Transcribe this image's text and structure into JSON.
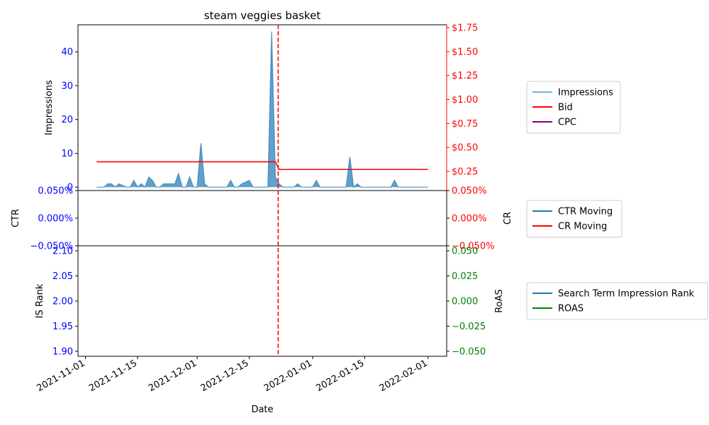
{
  "chart_data": [
    {
      "type": "area",
      "title": "steam veggies basket",
      "ylabel_left": "Impressions",
      "ylabel_right": "",
      "left_ylim": [
        -1,
        48
      ],
      "left_ticks": [
        0,
        10,
        20,
        30,
        40
      ],
      "left_tick_labels": [
        "0",
        "10",
        "20",
        "30",
        "40"
      ],
      "right_ylim": [
        0.05,
        1.78
      ],
      "right_ticks": [
        0.25,
        0.5,
        0.75,
        1.0,
        1.25,
        1.5,
        1.75
      ],
      "right_tick_labels": [
        "$0.25",
        "$0.50",
        "$0.75",
        "$1.00",
        "$1.25",
        "$1.50",
        "$1.75"
      ],
      "vline_date": "2021-12-22",
      "x_dates": [
        "2021-11-04",
        "2021-11-05",
        "2021-11-06",
        "2021-11-07",
        "2021-11-08",
        "2021-11-09",
        "2021-11-10",
        "2021-11-11",
        "2021-11-12",
        "2021-11-13",
        "2021-11-14",
        "2021-11-15",
        "2021-11-16",
        "2021-11-17",
        "2021-11-18",
        "2021-11-19",
        "2021-11-20",
        "2021-11-21",
        "2021-11-22",
        "2021-11-23",
        "2021-11-24",
        "2021-11-25",
        "2021-11-26",
        "2021-11-27",
        "2021-11-28",
        "2021-11-29",
        "2021-11-30",
        "2021-12-01",
        "2021-12-02",
        "2021-12-03",
        "2021-12-04",
        "2021-12-05",
        "2021-12-06",
        "2021-12-07",
        "2021-12-08",
        "2021-12-09",
        "2021-12-10",
        "2021-12-11",
        "2021-12-12",
        "2021-12-13",
        "2021-12-14",
        "2021-12-15",
        "2021-12-16",
        "2021-12-17",
        "2021-12-18",
        "2021-12-19",
        "2021-12-20",
        "2021-12-21",
        "2021-12-22",
        "2021-12-23",
        "2021-12-24",
        "2021-12-25",
        "2021-12-26",
        "2021-12-27",
        "2021-12-28",
        "2021-12-29",
        "2021-12-30",
        "2021-12-31",
        "2022-01-01",
        "2022-01-02",
        "2022-01-03",
        "2022-01-04",
        "2022-01-05",
        "2022-01-06",
        "2022-01-07",
        "2022-01-08",
        "2022-01-09",
        "2022-01-10",
        "2022-01-11",
        "2022-01-12",
        "2022-01-13",
        "2022-01-14",
        "2022-01-15",
        "2022-01-16",
        "2022-01-17",
        "2022-01-18",
        "2022-01-19",
        "2022-01-20",
        "2022-01-21",
        "2022-01-22",
        "2022-01-23",
        "2022-01-24",
        "2022-01-25",
        "2022-01-26",
        "2022-01-27",
        "2022-01-28",
        "2022-01-29",
        "2022-01-30",
        "2022-01-31",
        "2022-02-01"
      ],
      "series": [
        {
          "name": "Impressions",
          "color": "#1f77b4",
          "axis": "left",
          "values": [
            0,
            0,
            0,
            1,
            1,
            0,
            1,
            0.5,
            0,
            0,
            2,
            0,
            1,
            0,
            3,
            2,
            0,
            0,
            1,
            1,
            1,
            1,
            4,
            0,
            0,
            3,
            0,
            0,
            13,
            1,
            0,
            0,
            0,
            0,
            0,
            0,
            2,
            0,
            0,
            1,
            1.5,
            2,
            0,
            0,
            0,
            0,
            0,
            46,
            3,
            1,
            0,
            0,
            0,
            0,
            1,
            0,
            0,
            0,
            0,
            2,
            0,
            0,
            0,
            0,
            0,
            0,
            0,
            0,
            9,
            0,
            1,
            0,
            0,
            0,
            0,
            0,
            0,
            0,
            0,
            0,
            2,
            0,
            0,
            0,
            0,
            0,
            0,
            0,
            0,
            0
          ]
        },
        {
          "name": "Bid",
          "color": "#ff0000",
          "axis": "right",
          "values": [
            0.35,
            0.35,
            0.35,
            0.35,
            0.35,
            0.35,
            0.35,
            0.35,
            0.35,
            0.35,
            0.35,
            0.35,
            0.35,
            0.35,
            0.35,
            0.35,
            0.35,
            0.35,
            0.35,
            0.35,
            0.35,
            0.35,
            0.35,
            0.35,
            0.35,
            0.35,
            0.35,
            0.35,
            0.35,
            0.35,
            0.35,
            0.35,
            0.35,
            0.35,
            0.35,
            0.35,
            0.35,
            0.35,
            0.35,
            0.35,
            0.35,
            0.35,
            0.35,
            0.35,
            0.35,
            0.35,
            0.35,
            0.35,
            0.35,
            0.27,
            0.27,
            0.27,
            0.27,
            0.27,
            0.27,
            0.27,
            0.27,
            0.27,
            0.27,
            0.27,
            0.27,
            0.27,
            0.27,
            0.27,
            0.27,
            0.27,
            0.27,
            0.27,
            0.27,
            0.27,
            0.27,
            0.27,
            0.27,
            0.27,
            0.27,
            0.27,
            0.27,
            0.27,
            0.27,
            0.27,
            0.27,
            0.27,
            0.27,
            0.27,
            0.27,
            0.27,
            0.27,
            0.27,
            0.27,
            0.27
          ]
        },
        {
          "name": "CPC",
          "color": "#800080",
          "axis": "right",
          "values": []
        }
      ]
    },
    {
      "type": "line",
      "ylabel_left": "CTR",
      "ylabel_right": "CR",
      "left_ylim": [
        -0.0005,
        0.0005
      ],
      "left_ticks": [
        -0.0005,
        0,
        0.0005
      ],
      "left_tick_labels": [
        "−0.050%",
        "0.000%",
        "0.050%"
      ],
      "right_ylim": [
        -0.0005,
        0.0005
      ],
      "right_ticks": [
        -0.0005,
        0,
        0.0005
      ],
      "right_tick_labels": [
        "−0.050%",
        "0.000%",
        "0.050%"
      ],
      "series": [
        {
          "name": "CTR Moving",
          "color": "#1f77b4",
          "values": []
        },
        {
          "name": "CR Moving",
          "color": "#ff0000",
          "values": []
        }
      ]
    },
    {
      "type": "line",
      "xlabel": "Date",
      "ylabel_left": "IS Rank",
      "ylabel_right": "RoAS",
      "left_ylim": [
        1.89,
        2.11
      ],
      "left_ticks": [
        1.9,
        1.95,
        2.0,
        2.05,
        2.1
      ],
      "left_tick_labels": [
        "1.90",
        "1.95",
        "2.00",
        "2.05",
        "2.10"
      ],
      "right_ylim": [
        -0.055,
        0.055
      ],
      "right_ticks": [
        -0.05,
        -0.025,
        0,
        0.025,
        0.05
      ],
      "right_tick_labels": [
        "−0.050",
        "−0.025",
        "0.000",
        "0.025",
        "0.050"
      ],
      "x_ticks": [
        "2021-11-01",
        "2021-11-15",
        "2021-12-01",
        "2021-12-15",
        "2022-01-01",
        "2022-01-15",
        "2022-02-01"
      ],
      "x_tick_labels": [
        "2021-11-01",
        "2021-11-15",
        "2021-12-01",
        "2021-12-15",
        "2022-01-01",
        "2022-01-15",
        "2022-02-01"
      ],
      "series": [
        {
          "name": "Search Term Impression Rank",
          "color": "#1f77b4",
          "values": []
        },
        {
          "name": "ROAS",
          "color": "#008000",
          "values": []
        }
      ]
    }
  ],
  "colors": {
    "left_axis": "#0000ff",
    "right_axis_top": "#ff0000",
    "right_axis_mid": "#ff0000",
    "right_axis_bottom": "#008000",
    "vline": "#ff0000"
  }
}
